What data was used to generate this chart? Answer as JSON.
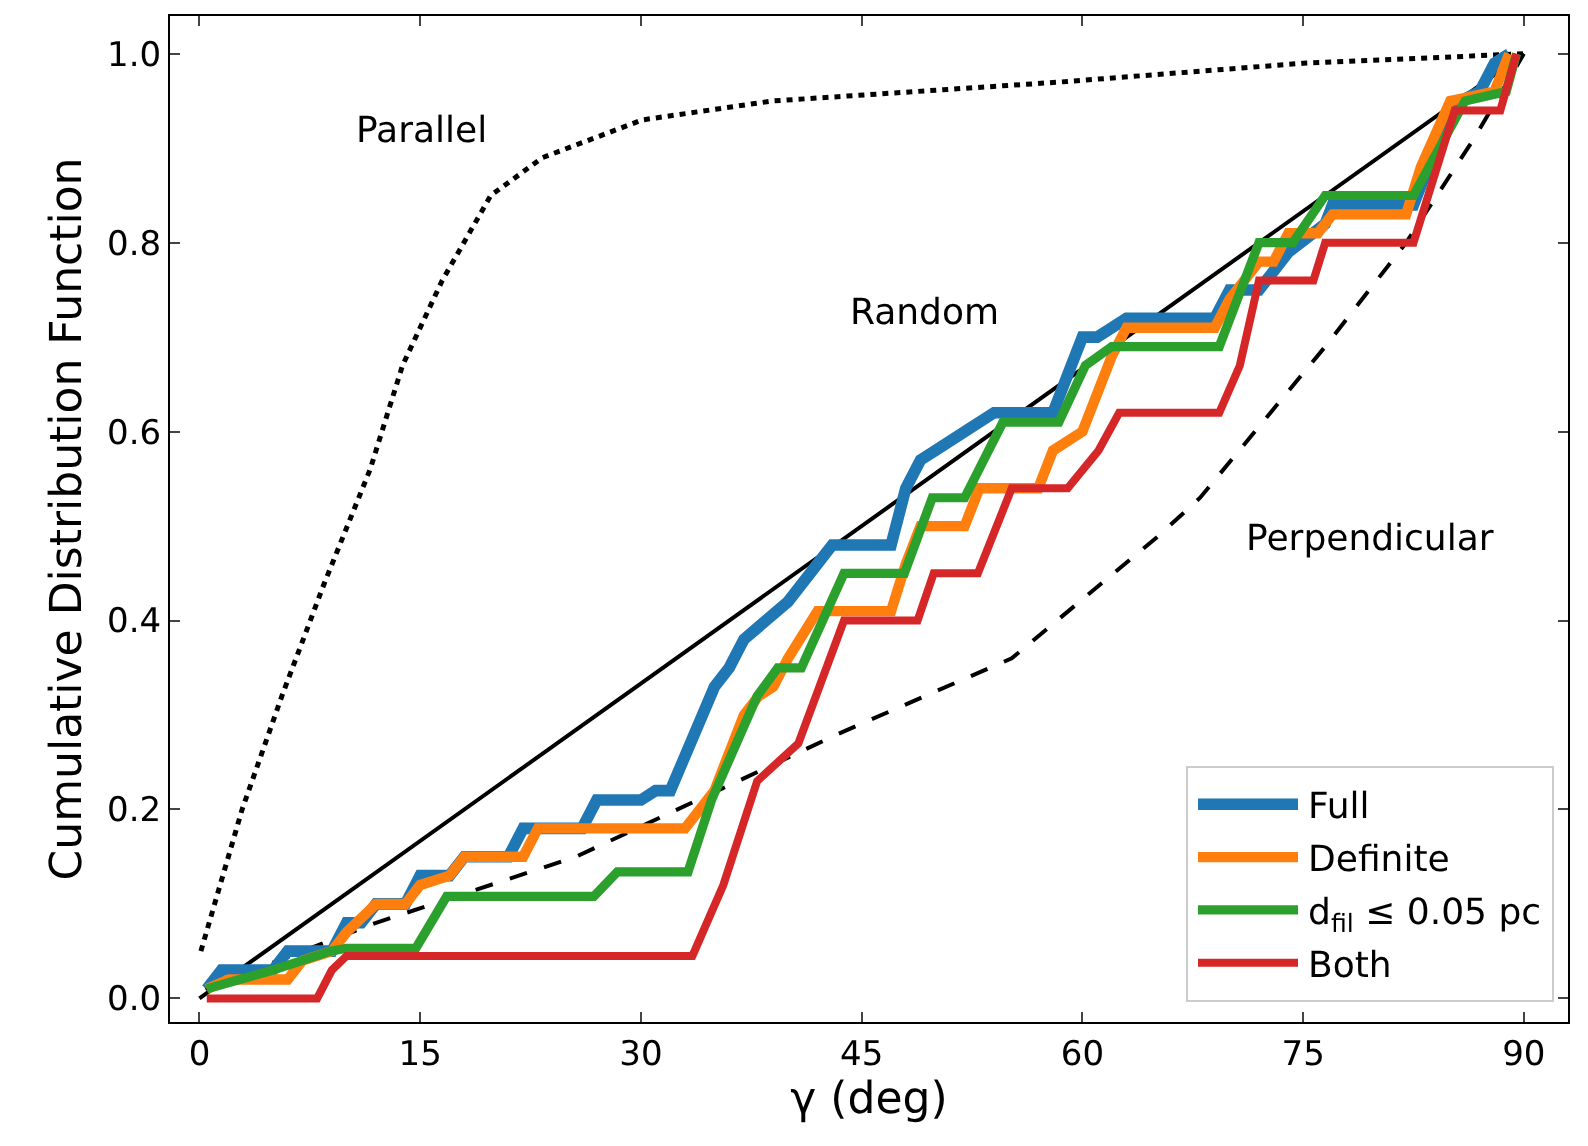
{
  "chart_data": {
    "type": "line",
    "xlabel": "γ (deg)",
    "ylabel": "Cumulative Distribution Function",
    "xlim": [
      -2,
      93
    ],
    "ylim": [
      -0.025,
      1.04
    ],
    "xticks": [
      0,
      15,
      30,
      45,
      60,
      75,
      90
    ],
    "yticks": [
      {
        "value": 0,
        "label": "0.0"
      },
      {
        "value": 0.2,
        "label": "0.2"
      },
      {
        "value": 0.4,
        "label": "0.4"
      },
      {
        "value": 0.6,
        "label": "0.6"
      },
      {
        "value": 0.8,
        "label": "0.8"
      },
      {
        "value": 1,
        "label": "1.0"
      }
    ],
    "legend": "bottom right",
    "marker": "none",
    "annotations": [
      "Parallel",
      "Random",
      "Perpendicular"
    ],
    "series": [
      {
        "color": "#000000",
        "line_style": "dotted",
        "x": [
          0.1,
          2.9,
          5.6,
          8.5,
          11.6,
          13.8,
          16.5,
          19.8,
          23.3,
          30.1,
          38.9,
          58.4,
          75,
          90
        ],
        "values": [
          0.05,
          0.2,
          0.32,
          0.44,
          0.56,
          0.67,
          0.76,
          0.85,
          0.89,
          0.93,
          0.95,
          0.97,
          0.99,
          1.0
        ]
      },
      {
        "color": "#000000",
        "line_style": "solid",
        "x": [
          0,
          90
        ],
        "values": [
          0,
          1
        ]
      },
      {
        "color": "#000000",
        "line_style": "dashed",
        "x": [
          0.4,
          12,
          25.6,
          36.6,
          43.4,
          55.2,
          65.2,
          68,
          76.5,
          82,
          86.6,
          90
        ],
        "values": [
          0.01,
          0.08,
          0.15,
          0.23,
          0.28,
          0.36,
          0.49,
          0.53,
          0.69,
          0.8,
          0.91,
          1.0
        ]
      },
      {
        "name": "Full",
        "color": "#1f77b4",
        "line_style": "solid",
        "x": [
          0.5,
          1.5,
          5,
          6,
          9,
          10,
          11,
          12,
          14,
          15,
          17,
          18,
          21,
          22,
          26,
          27,
          30,
          31,
          32,
          35,
          36,
          37,
          40,
          42,
          43,
          47,
          48,
          49,
          50,
          52,
          54,
          58,
          59,
          60,
          61,
          63,
          69,
          70,
          72,
          74,
          76.5,
          77,
          82.5,
          84,
          85.7,
          87,
          88,
          89
        ],
        "values": [
          0.01,
          0.03,
          0.03,
          0.05,
          0.05,
          0.08,
          0.08,
          0.1,
          0.1,
          0.13,
          0.13,
          0.15,
          0.15,
          0.18,
          0.18,
          0.21,
          0.21,
          0.22,
          0.22,
          0.33,
          0.35,
          0.38,
          0.42,
          0.46,
          0.48,
          0.48,
          0.54,
          0.57,
          0.58,
          0.6,
          0.62,
          0.62,
          0.66,
          0.7,
          0.7,
          0.72,
          0.72,
          0.75,
          0.75,
          0.79,
          0.82,
          0.84,
          0.84,
          0.9,
          0.95,
          0.96,
          0.99,
          1.0
        ]
      },
      {
        "name": "Definite",
        "color": "#ff7f0e",
        "line_style": "solid",
        "x": [
          0.5,
          2,
          6,
          7,
          9,
          10,
          12,
          14,
          15,
          17,
          18,
          22,
          23,
          33,
          35,
          37,
          38,
          39,
          40,
          42,
          47,
          48,
          49,
          52,
          53,
          57,
          58,
          60,
          61,
          62,
          63,
          69,
          70,
          72,
          73,
          74,
          76,
          77,
          82,
          83,
          85,
          88,
          89
        ],
        "values": [
          0.01,
          0.02,
          0.02,
          0.04,
          0.05,
          0.07,
          0.1,
          0.1,
          0.12,
          0.13,
          0.15,
          0.15,
          0.18,
          0.18,
          0.22,
          0.3,
          0.32,
          0.33,
          0.36,
          0.41,
          0.41,
          0.46,
          0.5,
          0.5,
          0.54,
          0.54,
          0.58,
          0.6,
          0.64,
          0.68,
          0.71,
          0.71,
          0.74,
          0.78,
          0.78,
          0.81,
          0.81,
          0.83,
          0.83,
          0.88,
          0.95,
          0.96,
          1.0
        ]
      },
      {
        "name": "d$_{fil}$ ≤ 0.05 pc",
        "color": "#2ca02c",
        "line_style": "solid",
        "x": [
          0.5,
          5,
          8.9,
          10,
          14.7,
          16.8,
          26.8,
          28.4,
          33.2,
          34.8,
          37.9,
          39.3,
          40.9,
          43.8,
          47.9,
          49.8,
          52,
          54.6,
          58.4,
          60.2,
          62,
          69.3,
          72,
          74.3,
          76.5,
          82.5,
          86,
          88.8,
          89.5
        ],
        "values": [
          0.01,
          0.03,
          0.05,
          0.053,
          0.053,
          0.108,
          0.108,
          0.134,
          0.134,
          0.21,
          0.32,
          0.35,
          0.35,
          0.45,
          0.45,
          0.53,
          0.53,
          0.61,
          0.61,
          0.67,
          0.69,
          0.69,
          0.8,
          0.8,
          0.85,
          0.85,
          0.95,
          0.96,
          1.0
        ]
      },
      {
        "name": "Both",
        "color": "#d62728",
        "line_style": "solid",
        "x": [
          0.5,
          8,
          9,
          10,
          33.5,
          35.6,
          37.9,
          40.7,
          43.8,
          48.8,
          49.9,
          52.9,
          55.2,
          59,
          61.1,
          62.5,
          69.3,
          70.7,
          72,
          75.7,
          76.5,
          82.5,
          85.3,
          88.4,
          89.5
        ],
        "values": [
          0.0,
          0.0,
          0.03,
          0.045,
          0.045,
          0.12,
          0.23,
          0.27,
          0.4,
          0.4,
          0.45,
          0.45,
          0.54,
          0.54,
          0.58,
          0.62,
          0.62,
          0.67,
          0.76,
          0.76,
          0.8,
          0.8,
          0.94,
          0.94,
          1.0
        ]
      }
    ]
  }
}
